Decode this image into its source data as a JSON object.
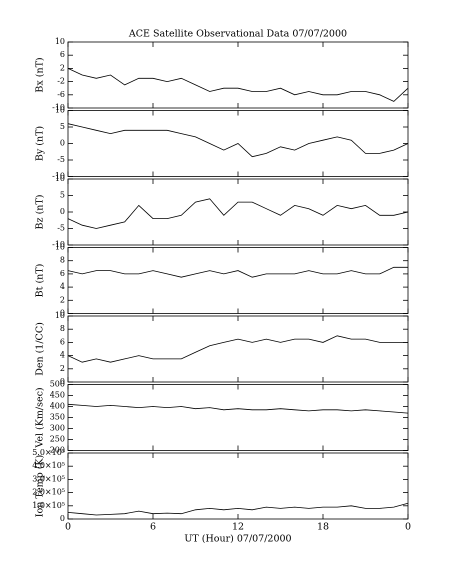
{
  "chart_data": [
    {
      "type": "line",
      "title": "ACE Satellite Observational Data   07/07/2000",
      "ylabel": "Bx (nT)",
      "color": "#000000",
      "x": [
        0,
        1,
        2,
        3,
        4,
        5,
        6,
        7,
        8,
        9,
        10,
        11,
        12,
        13,
        14,
        15,
        16,
        17,
        18,
        19,
        20,
        21,
        22,
        23,
        24
      ],
      "values": [
        2,
        0,
        -1,
        0,
        -3,
        -1,
        -1,
        -2,
        -1,
        -3,
        -5,
        -4,
        -4,
        -5,
        -5,
        -4,
        -6,
        -5,
        -6,
        -6,
        -5,
        -5,
        -6,
        -8,
        -4
      ],
      "xlim": [
        0,
        24
      ],
      "ylim": [
        -10,
        10
      ],
      "yticks": [
        -10,
        -6,
        -2,
        2,
        6,
        10
      ]
    },
    {
      "type": "line",
      "ylabel": "By (nT)",
      "color": "#000000",
      "x": [
        0,
        1,
        2,
        3,
        4,
        5,
        6,
        7,
        8,
        9,
        10,
        11,
        12,
        13,
        14,
        15,
        16,
        17,
        18,
        19,
        20,
        21,
        22,
        23,
        24
      ],
      "values": [
        6,
        5,
        4,
        3,
        4,
        4,
        4,
        4,
        3,
        2,
        0,
        -2,
        0,
        -4,
        -3,
        -1,
        -2,
        0,
        1,
        2,
        1,
        -3,
        -3,
        -2,
        0
      ],
      "xlim": [
        0,
        24
      ],
      "ylim": [
        -10,
        10
      ],
      "yticks": [
        -10,
        -5,
        0,
        5,
        10
      ]
    },
    {
      "type": "line",
      "ylabel": "Bz (nT)",
      "color": "#000000",
      "x": [
        0,
        1,
        2,
        3,
        4,
        5,
        6,
        7,
        8,
        9,
        10,
        11,
        12,
        13,
        14,
        15,
        16,
        17,
        18,
        19,
        20,
        21,
        22,
        23,
        24
      ],
      "values": [
        -2,
        -4,
        -5,
        -4,
        -3,
        2,
        -2,
        -2,
        -1,
        3,
        4,
        -1,
        3,
        3,
        1,
        -1,
        2,
        1,
        -1,
        2,
        1,
        2,
        -1,
        -1,
        0
      ],
      "xlim": [
        0,
        24
      ],
      "ylim": [
        -10,
        10
      ],
      "yticks": [
        -10,
        -5,
        0,
        5,
        10
      ]
    },
    {
      "type": "line",
      "ylabel": "Bt (nT)",
      "color": "#000000",
      "x": [
        0,
        1,
        2,
        3,
        4,
        5,
        6,
        7,
        8,
        9,
        10,
        11,
        12,
        13,
        14,
        15,
        16,
        17,
        18,
        19,
        20,
        21,
        22,
        23,
        24
      ],
      "values": [
        6.5,
        6,
        6.5,
        6.5,
        6,
        6,
        6.5,
        6,
        5.5,
        6,
        6.5,
        6,
        6.5,
        5.5,
        6,
        6,
        6,
        6.5,
        6,
        6,
        6.5,
        6,
        6,
        7,
        7
      ],
      "xlim": [
        0,
        24
      ],
      "ylim": [
        0,
        10
      ],
      "yticks": [
        0,
        2,
        4,
        6,
        8,
        10
      ]
    },
    {
      "type": "line",
      "ylabel": "Den (1/CC)",
      "color": "#000000",
      "x": [
        0,
        1,
        2,
        3,
        4,
        5,
        6,
        7,
        8,
        9,
        10,
        11,
        12,
        13,
        14,
        15,
        16,
        17,
        18,
        19,
        20,
        21,
        22,
        23,
        24
      ],
      "values": [
        4,
        3,
        3.5,
        3,
        3.5,
        4,
        3.5,
        3.5,
        3.5,
        4.5,
        5.5,
        6,
        6.5,
        6,
        6.5,
        6,
        6.5,
        6.5,
        6,
        7,
        6.5,
        6.5,
        6,
        6,
        6
      ],
      "xlim": [
        0,
        24
      ],
      "ylim": [
        0,
        10
      ],
      "yticks": [
        0,
        2,
        4,
        6,
        8,
        10
      ]
    },
    {
      "type": "line",
      "ylabel": "Vel (Km/sec)",
      "color": "#000000",
      "x": [
        0,
        1,
        2,
        3,
        4,
        5,
        6,
        7,
        8,
        9,
        10,
        11,
        12,
        13,
        14,
        15,
        16,
        17,
        18,
        19,
        20,
        21,
        22,
        23,
        24
      ],
      "values": [
        410,
        405,
        400,
        405,
        400,
        395,
        400,
        395,
        400,
        390,
        395,
        385,
        390,
        385,
        385,
        390,
        385,
        380,
        385,
        385,
        380,
        385,
        380,
        375,
        370
      ],
      "xlim": [
        0,
        24
      ],
      "ylim": [
        200,
        500
      ],
      "yticks": [
        200,
        250,
        300,
        350,
        400,
        450,
        500
      ]
    },
    {
      "type": "line",
      "ylabel": "Ion Temp (K)",
      "xlabel": "UT (Hour)  07/07/2000",
      "color": "#000000",
      "x": [
        0,
        1,
        2,
        3,
        4,
        5,
        6,
        7,
        8,
        9,
        10,
        11,
        12,
        13,
        14,
        15,
        16,
        17,
        18,
        19,
        20,
        21,
        22,
        23,
        24
      ],
      "values": [
        50000,
        40000,
        30000,
        35000,
        40000,
        60000,
        40000,
        45000,
        40000,
        70000,
        80000,
        70000,
        80000,
        70000,
        90000,
        80000,
        90000,
        80000,
        90000,
        90000,
        100000,
        80000,
        80000,
        90000,
        120000
      ],
      "xlim": [
        0,
        24
      ],
      "ylim": [
        0,
        500000
      ],
      "yticks": [
        0,
        {
          "value": 100000,
          "label": "1.0×10⁵"
        },
        {
          "value": 200000,
          "label": "2.0×10⁵"
        },
        {
          "value": 300000,
          "label": "3.0×10⁵"
        },
        {
          "value": 400000,
          "label": "4.0×10⁵"
        },
        {
          "value": 500000,
          "label": "5.0×10⁵"
        }
      ],
      "xticks": [
        0,
        6,
        12,
        18,
        {
          "value": 24,
          "label": "0"
        }
      ]
    }
  ]
}
